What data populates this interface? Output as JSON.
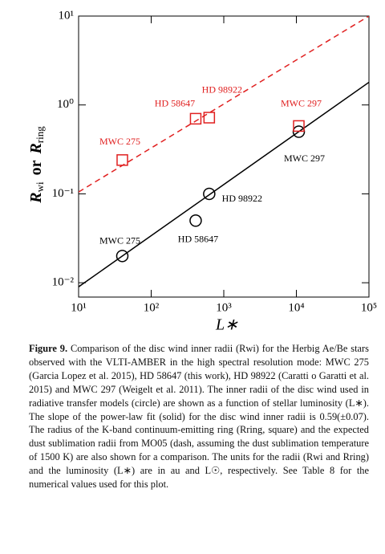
{
  "chart_data": {
    "type": "scatter",
    "xlog": true,
    "ylog": true,
    "xlim": [
      10,
      100000
    ],
    "ylim": [
      0.0069,
      10
    ],
    "xticks": [
      {
        "value": 10,
        "label": "10¹"
      },
      {
        "value": 100,
        "label": "10²"
      },
      {
        "value": 1000,
        "label": "10³"
      },
      {
        "value": 10000,
        "label": "10⁴"
      },
      {
        "value": 100000,
        "label": "10⁵"
      }
    ],
    "yticks": [
      {
        "value": 0.01,
        "label": "10⁻²"
      },
      {
        "value": 0.1,
        "label": "10⁻¹"
      },
      {
        "value": 1,
        "label": "10⁰"
      },
      {
        "value": 10,
        "label": "10¹"
      }
    ],
    "xlabel": "L∗",
    "ylabel_parts": [
      "R",
      "wi",
      "or",
      "R",
      "ring"
    ],
    "series": [
      {
        "marker": "circle",
        "color": "#000000",
        "x": [
          40,
          410,
          630,
          10800
        ],
        "values": [
          0.02,
          0.05,
          0.1,
          0.5
        ],
        "point_labels": [
          "MWC 275",
          "HD 58647",
          "HD 98922",
          "MWC 297"
        ]
      },
      {
        "marker": "square",
        "color": "#e02020",
        "x": [
          40,
          410,
          630,
          10800
        ],
        "values": [
          0.24,
          0.7,
          0.72,
          0.58
        ],
        "point_labels": [
          "MWC 275",
          "HD 58647",
          "HD 98922",
          "MWC 297"
        ]
      }
    ],
    "fits": [
      {
        "style": "solid",
        "color": "#000000",
        "x": [
          10,
          100000
        ],
        "values": [
          0.009,
          1.8
        ]
      },
      {
        "style": "dashed",
        "color": "#e02020",
        "x": [
          10,
          100000
        ],
        "values": [
          0.105,
          10
        ]
      }
    ]
  },
  "caption": {
    "label": "Figure 9.",
    "text": "Comparison of the disc wind inner radii (Rwi) for the Herbig Ae/Be stars observed with the VLTI-AMBER in the high spectral resolution mode: MWC 275 (Garcia Lopez et al. 2015), HD 58647 (this work), HD 98922 (Caratti o Garatti et al. 2015) and MWC 297 (Weigelt et al. 2011). The inner radii of the disc wind used in radiative transfer models (circle) are shown as a function of stellar luminosity (L∗). The slope of the power-law fit (solid) for the disc wind inner radii is 0.59(±0.07). The radius of the K-band continuum-emitting ring (Rring, square) and the expected dust sublimation radii from MO05 (dash, assuming the dust sublimation temperature of 1500 K) are also shown for a comparison. The units for the radii (Rwi and Rring) and the luminosity (L∗) are in au and L☉, respectively. See Table 8 for the numerical values used for this plot."
  }
}
